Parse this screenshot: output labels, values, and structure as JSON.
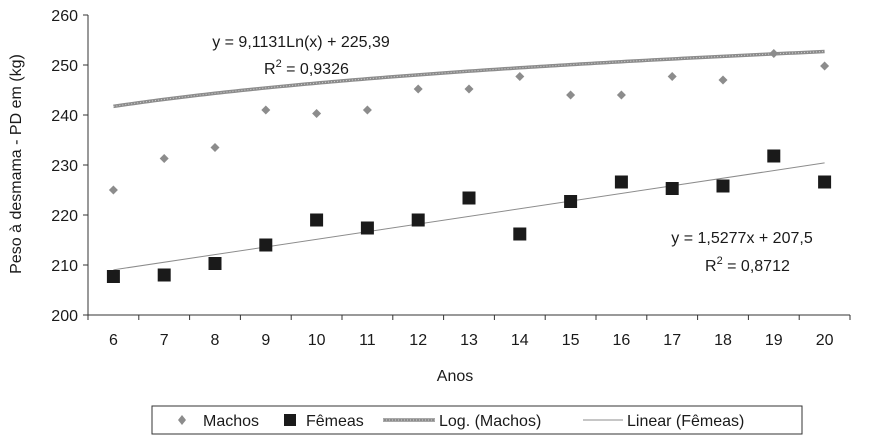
{
  "chart_data": {
    "type": "scatter",
    "xlabel": "Anos",
    "ylabel": "Peso à desmama - PD em (kg)",
    "xlim": [
      6,
      20
    ],
    "ylim": [
      200,
      260
    ],
    "x_ticks": [
      "6",
      "7",
      "8",
      "9",
      "10",
      "11",
      "12",
      "13",
      "14",
      "15",
      "16",
      "17",
      "18",
      "19",
      "20"
    ],
    "y_ticks": [
      "200",
      "210",
      "220",
      "230",
      "240",
      "250",
      "260"
    ],
    "grid": false,
    "legend_position": "bottom",
    "series": [
      {
        "name": "Machos",
        "marker": "diamond",
        "color": "#8c8c8c",
        "x": [
          6,
          7,
          8,
          9,
          10,
          11,
          12,
          13,
          14,
          15,
          16,
          17,
          18,
          19,
          20
        ],
        "y": [
          225.0,
          231.3,
          233.5,
          241.0,
          240.3,
          241.0,
          245.2,
          245.2,
          247.7,
          244.0,
          244.0,
          247.7,
          247.0,
          252.3,
          249.8
        ]
      },
      {
        "name": "Fêmeas",
        "marker": "square",
        "color": "#1a1a1a",
        "x": [
          6,
          7,
          8,
          9,
          10,
          11,
          12,
          13,
          14,
          15,
          16,
          17,
          18,
          19,
          20
        ],
        "y": [
          207.7,
          208.0,
          210.3,
          214.0,
          219.0,
          217.4,
          219.0,
          223.4,
          216.2,
          222.7,
          226.6,
          225.3,
          225.8,
          231.8,
          226.6
        ]
      }
    ],
    "trendlines": [
      {
        "name": "Log. (Machos)",
        "kind": "log",
        "color": "#8c8c8c",
        "a": 9.1131,
        "b": 225.39,
        "equation": "y = 9,1131Ln(x) + 225,39",
        "r2_label": "R",
        "r2_exp": "2",
        "r2_value": " = 0,9326"
      },
      {
        "name": "Linear (Fêmeas)",
        "kind": "linear",
        "color": "#8c8c8c",
        "a": 1.5277,
        "b": 207.5,
        "equation": "y = 1,5277x + 207,5",
        "r2_label": "R",
        "r2_exp": "2",
        "r2_value": " = 0,8712"
      }
    ]
  }
}
